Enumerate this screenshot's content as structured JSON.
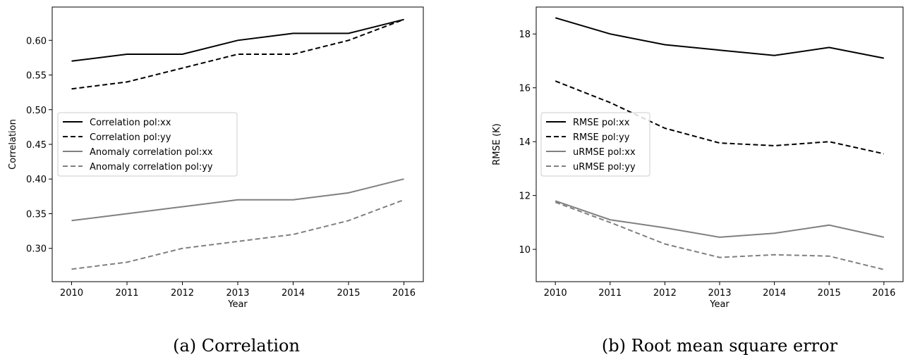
{
  "captions": [
    "(a)  Correlation",
    "(b)  Root mean square error"
  ],
  "chart_data": [
    {
      "type": "line",
      "xlabel": "Year",
      "ylabel": "Correlation",
      "x": [
        2010,
        2011,
        2012,
        2013,
        2014,
        2015,
        2016
      ],
      "xlim": [
        2009.65,
        2016.35
      ],
      "ylim": [
        0.252,
        0.648
      ],
      "yticks": [
        "0.30",
        "0.35",
        "0.40",
        "0.45",
        "0.50",
        "0.55",
        "0.60"
      ],
      "ytick_values": [
        0.3,
        0.35,
        0.4,
        0.45,
        0.5,
        0.55,
        0.6
      ],
      "legend_position": "center-left",
      "grid": false,
      "series": [
        {
          "name": "Correlation pol:xx",
          "color": "#000000",
          "dash": "solid",
          "values": [
            0.57,
            0.58,
            0.58,
            0.6,
            0.61,
            0.61,
            0.63
          ]
        },
        {
          "name": "Correlation pol:yy",
          "color": "#000000",
          "dash": "dashed",
          "values": [
            0.53,
            0.54,
            0.56,
            0.58,
            0.58,
            0.6,
            0.63
          ]
        },
        {
          "name": "Anomaly correlation pol:xx",
          "color": "#808080",
          "dash": "solid",
          "values": [
            0.34,
            0.35,
            0.36,
            0.37,
            0.37,
            0.38,
            0.4
          ]
        },
        {
          "name": "Anomaly correlation pol:yy",
          "color": "#808080",
          "dash": "dashed",
          "values": [
            0.27,
            0.28,
            0.3,
            0.31,
            0.32,
            0.34,
            0.37
          ]
        }
      ]
    },
    {
      "type": "line",
      "xlabel": "Year",
      "ylabel": "RMSE (K)",
      "x": [
        2010,
        2011,
        2012,
        2013,
        2014,
        2015,
        2016
      ],
      "xlim": [
        2009.65,
        2016.35
      ],
      "ylim": [
        8.8,
        19.0
      ],
      "yticks": [
        "10",
        "12",
        "14",
        "16",
        "18"
      ],
      "ytick_values": [
        10,
        12,
        14,
        16,
        18
      ],
      "legend_position": "center-left",
      "grid": false,
      "series": [
        {
          "name": "RMSE pol:xx",
          "color": "#000000",
          "dash": "solid",
          "values": [
            18.6,
            18.0,
            17.6,
            17.4,
            17.2,
            17.5,
            17.1
          ]
        },
        {
          "name": "RMSE pol:yy",
          "color": "#000000",
          "dash": "dashed",
          "values": [
            16.25,
            15.45,
            14.5,
            13.95,
            13.85,
            14.0,
            13.55
          ]
        },
        {
          "name": "uRMSE pol:xx",
          "color": "#808080",
          "dash": "solid",
          "values": [
            11.8,
            11.1,
            10.8,
            10.45,
            10.6,
            10.9,
            10.45
          ]
        },
        {
          "name": "uRMSE pol:yy",
          "color": "#808080",
          "dash": "dashed",
          "values": [
            11.75,
            11.0,
            10.2,
            9.7,
            9.8,
            9.75,
            9.25
          ]
        }
      ]
    }
  ]
}
